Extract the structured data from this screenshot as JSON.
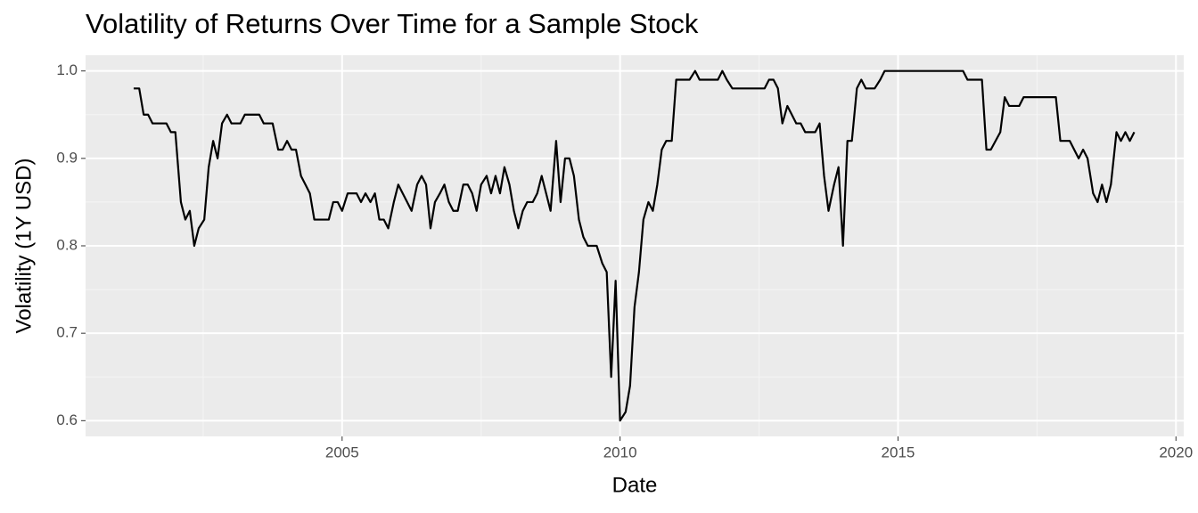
{
  "chart_data": {
    "type": "line",
    "title": "Volatility of Returns Over Time for a Sample Stock",
    "x_label": "Date",
    "y_label": "Volatility (1Y USD)",
    "series": [
      {
        "name": "Volatility",
        "color": "#000000",
        "x": [
          2001.25,
          2001.35,
          2001.43,
          2001.51,
          2001.59,
          2001.84,
          2001.92,
          2002.0,
          2002.1,
          2002.18,
          2002.26,
          2002.34,
          2002.42,
          2002.52,
          2002.6,
          2002.68,
          2002.76,
          2002.84,
          2002.93,
          2003.01,
          2003.17,
          2003.25,
          2003.51,
          2003.59,
          2003.75,
          2003.85,
          2003.93,
          2004.01,
          2004.09,
          2004.17,
          2004.26,
          2004.34,
          2004.42,
          2004.5,
          2004.76,
          2004.84,
          2004.92,
          2005.0,
          2005.1,
          2005.26,
          2005.34,
          2005.42,
          2005.51,
          2005.59,
          2005.67,
          2005.75,
          2005.83,
          2005.93,
          2006.01,
          2006.09,
          2006.17,
          2006.25,
          2006.35,
          2006.43,
          2006.51,
          2006.59,
          2006.67,
          2006.76,
          2006.84,
          2006.92,
          2007.0,
          2007.08,
          2007.18,
          2007.26,
          2007.34,
          2007.42,
          2007.5,
          2007.6,
          2007.68,
          2007.76,
          2007.84,
          2007.92,
          2008.01,
          2008.09,
          2008.17,
          2008.25,
          2008.33,
          2008.43,
          2008.51,
          2008.59,
          2008.67,
          2008.75,
          2008.85,
          2008.93,
          2009.01,
          2009.09,
          2009.17,
          2009.26,
          2009.34,
          2009.42,
          2009.58,
          2009.68,
          2009.76,
          2009.84,
          2009.92,
          2010.0,
          2010.1,
          2010.18,
          2010.26,
          2010.34,
          2010.42,
          2010.51,
          2010.59,
          2010.67,
          2010.75,
          2010.83,
          2010.93,
          2011.01,
          2011.25,
          2011.35,
          2011.43,
          2011.76,
          2011.84,
          2011.92,
          2012.02,
          2012.6,
          2012.68,
          2012.76,
          2012.84,
          2012.92,
          2013.01,
          2013.09,
          2013.17,
          2013.25,
          2013.33,
          2013.51,
          2013.59,
          2013.67,
          2013.75,
          2013.85,
          2013.93,
          2014.01,
          2014.09,
          2014.17,
          2014.26,
          2014.34,
          2014.42,
          2014.58,
          2014.68,
          2014.76,
          2016.17,
          2016.25,
          2016.51,
          2016.59,
          2016.67,
          2016.84,
          2016.92,
          2017.0,
          2017.18,
          2017.26,
          2017.84,
          2017.92,
          2018.09,
          2018.25,
          2018.33,
          2018.41,
          2018.51,
          2018.59,
          2018.67,
          2018.75,
          2018.83,
          2018.93,
          2019.01,
          2019.09,
          2019.17,
          2019.25
        ],
        "values": [
          0.98,
          0.98,
          0.95,
          0.95,
          0.94,
          0.94,
          0.93,
          0.93,
          0.85,
          0.83,
          0.84,
          0.8,
          0.82,
          0.83,
          0.89,
          0.92,
          0.9,
          0.94,
          0.95,
          0.94,
          0.94,
          0.95,
          0.95,
          0.94,
          0.94,
          0.91,
          0.91,
          0.92,
          0.91,
          0.91,
          0.88,
          0.87,
          0.86,
          0.83,
          0.83,
          0.85,
          0.85,
          0.84,
          0.86,
          0.86,
          0.85,
          0.86,
          0.85,
          0.86,
          0.83,
          0.83,
          0.82,
          0.85,
          0.87,
          0.86,
          0.85,
          0.84,
          0.87,
          0.88,
          0.87,
          0.82,
          0.85,
          0.86,
          0.87,
          0.85,
          0.84,
          0.84,
          0.87,
          0.87,
          0.86,
          0.84,
          0.87,
          0.88,
          0.86,
          0.88,
          0.86,
          0.89,
          0.87,
          0.84,
          0.82,
          0.84,
          0.85,
          0.85,
          0.86,
          0.88,
          0.86,
          0.84,
          0.92,
          0.85,
          0.9,
          0.9,
          0.88,
          0.83,
          0.81,
          0.8,
          0.8,
          0.78,
          0.77,
          0.65,
          0.76,
          0.6,
          0.61,
          0.64,
          0.73,
          0.77,
          0.83,
          0.85,
          0.84,
          0.87,
          0.91,
          0.92,
          0.92,
          0.99,
          0.99,
          1.0,
          0.99,
          0.99,
          1.0,
          0.99,
          0.98,
          0.98,
          0.99,
          0.99,
          0.98,
          0.94,
          0.96,
          0.95,
          0.94,
          0.94,
          0.93,
          0.93,
          0.94,
          0.88,
          0.84,
          0.87,
          0.89,
          0.8,
          0.92,
          0.92,
          0.98,
          0.99,
          0.98,
          0.98,
          0.99,
          1.0,
          1.0,
          0.99,
          0.99,
          0.91,
          0.91,
          0.93,
          0.97,
          0.96,
          0.96,
          0.97,
          0.97,
          0.92,
          0.92,
          0.9,
          0.91,
          0.9,
          0.86,
          0.85,
          0.87,
          0.85,
          0.87,
          0.93,
          0.92,
          0.93,
          0.92,
          0.93
        ]
      }
    ],
    "xlim": [
      2000.385,
      2020.14
    ],
    "xticks": [
      2005,
      2010,
      2015,
      2020
    ],
    "ylim": [
      0.582,
      1.018
    ],
    "yticks": [
      0.6,
      0.7,
      0.8,
      0.9,
      {
        "value": 1.0,
        "label": "1.0"
      }
    ],
    "grid": true
  }
}
